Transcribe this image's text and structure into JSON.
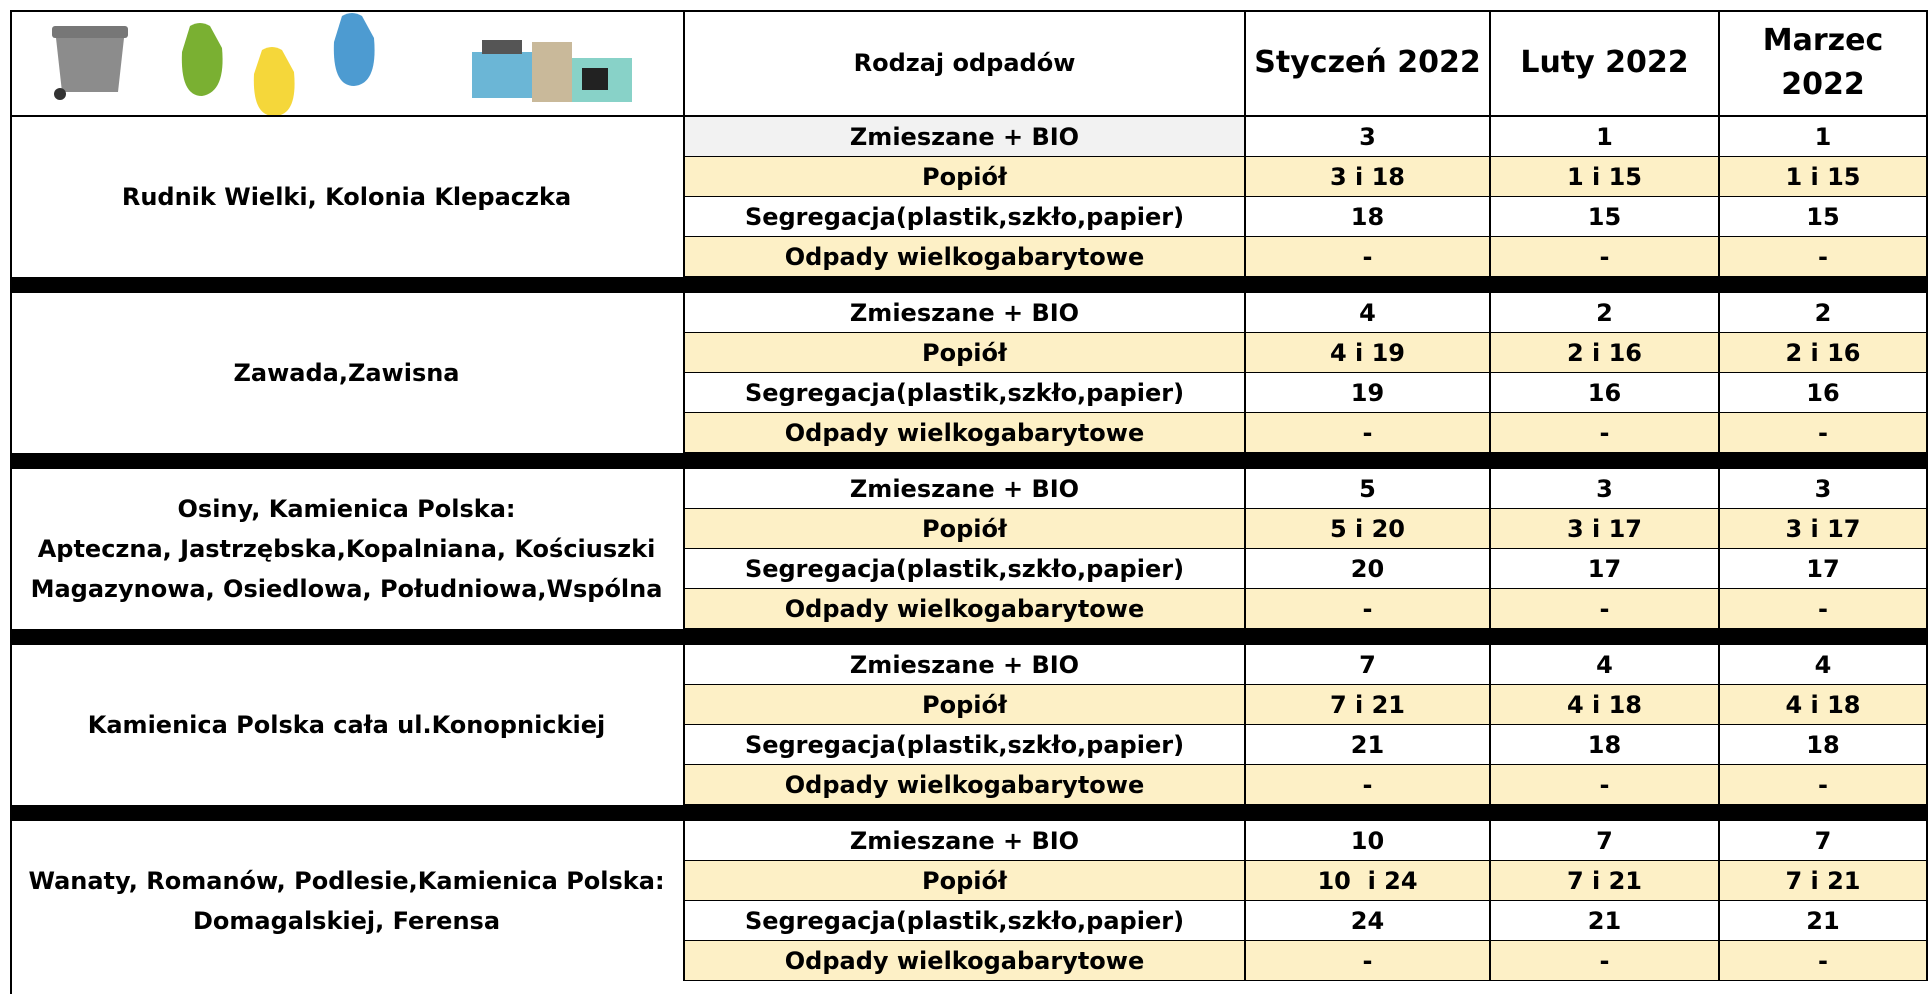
{
  "header": {
    "columns": [
      "Rodzaj odpadów",
      "Styczeń 2022",
      "Luty 2022",
      "Marzec 2022"
    ]
  },
  "groups": [
    {
      "location_lines": [
        "Rudnik Wielki, Kolonia Klepaczka"
      ],
      "rows": [
        [
          "Zmieszane + BIO",
          "3",
          "1",
          "1"
        ],
        [
          "Popiół",
          "3 i 18",
          "1 i 15",
          "1 i 15"
        ],
        [
          "Segregacja(plastik,szkło,papier)",
          "18",
          "15",
          "15"
        ],
        [
          "Odpady wielkogabarytowe",
          "-",
          "-",
          "-"
        ]
      ]
    },
    {
      "location_lines": [
        "Zawada,Zawisna"
      ],
      "rows": [
        [
          "Zmieszane + BIO",
          "4",
          "2",
          "2"
        ],
        [
          "Popiół",
          "4 i 19",
          "2 i 16",
          "2 i 16"
        ],
        [
          "Segregacja(plastik,szkło,papier)",
          "19",
          "16",
          "16"
        ],
        [
          "Odpady wielkogabarytowe",
          "-",
          "-",
          "-"
        ]
      ]
    },
    {
      "location_lines": [
        "Osiny, Kamienica Polska:",
        "Apteczna, Jastrzębska,Kopalniana, Kościuszki",
        "Magazynowa, Osiedlowa, Południowa,Wspólna"
      ],
      "rows": [
        [
          "Zmieszane + BIO",
          "5",
          "3",
          "3"
        ],
        [
          "Popiół",
          "5 i 20",
          "3 i 17",
          "3 i 17"
        ],
        [
          "Segregacja(plastik,szkło,papier)",
          "20",
          "17",
          "17"
        ],
        [
          "Odpady wielkogabarytowe",
          "-",
          "-",
          "-"
        ]
      ]
    },
    {
      "location_lines": [
        "Kamienica Polska cała ul.Konopnickiej"
      ],
      "rows": [
        [
          "Zmieszane + BIO",
          "7",
          "4",
          "4"
        ],
        [
          "Popiół",
          "7 i 21",
          "4 i 18",
          "4 i 18"
        ],
        [
          "Segregacja(plastik,szkło,papier)",
          "21",
          "18",
          "18"
        ],
        [
          "Odpady wielkogabarytowe",
          "-",
          "-",
          "-"
        ]
      ]
    },
    {
      "location_lines": [
        "Wanaty, Romanów, Podlesie,Kamienica Polska:",
        "Domagalskiej, Ferensa"
      ],
      "rows": [
        [
          "Zmieszane + BIO",
          "10",
          "7",
          "7"
        ],
        [
          "Popiół",
          "10  i 24",
          "7 i 21",
          "7 i 21"
        ],
        [
          "Segregacja(plastik,szkło,papier)",
          "24",
          "21",
          "21"
        ],
        [
          "Odpady wielkogabarytowe",
          "-",
          "-",
          "-"
        ]
      ]
    }
  ]
}
